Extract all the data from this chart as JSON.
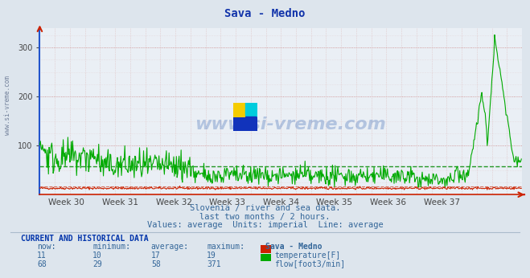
{
  "title": "Sava - Medno",
  "bg_color": "#dde5ed",
  "plot_bg_color": "#eaeff5",
  "grid_color_major": "#cc8888",
  "grid_color_minor": "#ddbbbb",
  "xlabel": "",
  "ylabel": "",
  "ylim": [
    0,
    340
  ],
  "yticks": [
    100,
    200,
    300
  ],
  "week_labels": [
    "Week 30",
    "Week 31",
    "Week 32",
    "Week 33",
    "Week 34",
    "Week 35",
    "Week 36",
    "Week 37"
  ],
  "temp_color": "#cc2200",
  "flow_color": "#00aa00",
  "avg_flow_color": "#008800",
  "avg_temp_color": "#cc2200",
  "temp_now": 11,
  "temp_min": 10,
  "temp_avg": 17,
  "temp_max": 19,
  "flow_now": 68,
  "flow_min": 29,
  "flow_avg": 58,
  "flow_max": 371,
  "subtitle1": "Slovenia / river and sea data.",
  "subtitle2": "last two months / 2 hours.",
  "subtitle3": "Values: average  Units: imperial  Line: average",
  "watermark": "www.si-vreme.com",
  "table_header": "CURRENT AND HISTORICAL DATA",
  "n_points": 720,
  "left_border_color": "#2255cc",
  "spine_color": "#cc2200"
}
